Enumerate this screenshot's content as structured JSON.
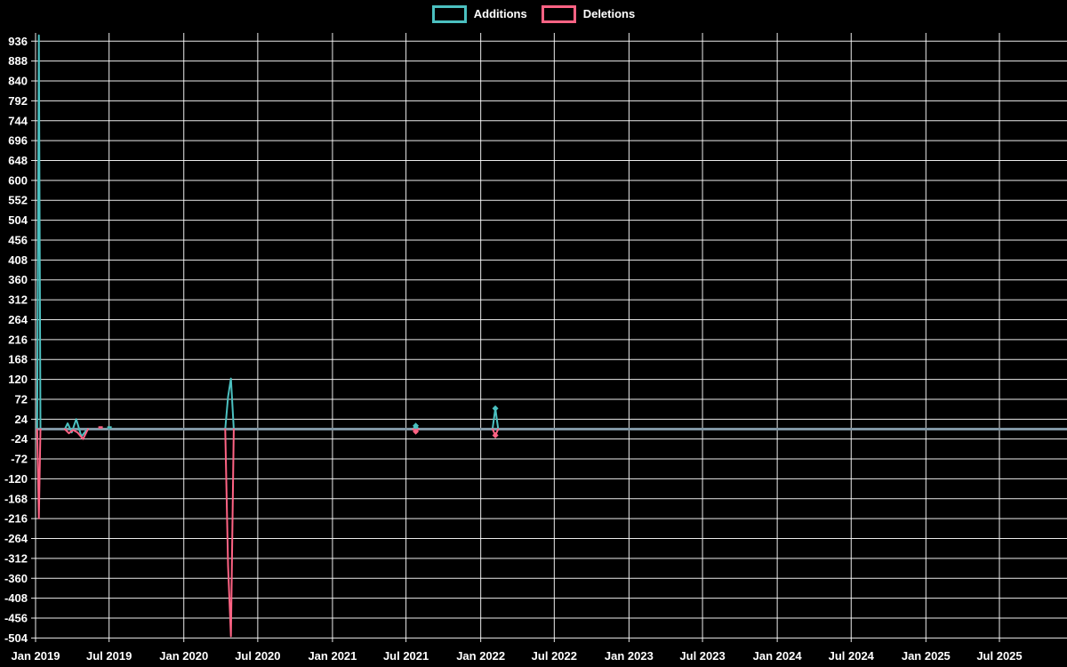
{
  "chart_data": {
    "type": "line",
    "title": "",
    "description": "Weekly code additions and deletions over time (code-frequency style chart)",
    "colors": {
      "background": "#000000",
      "grid": "#ffffff",
      "text": "#ffffff",
      "baseline": "#8096a4"
    },
    "legend": [
      {
        "label": "Additions",
        "color": "#4bc0c0"
      },
      {
        "label": "Deletions",
        "color": "#ff6384"
      }
    ],
    "y_axis": {
      "min": -504,
      "max": 936,
      "step": 48,
      "ticks": [
        936,
        888,
        840,
        792,
        744,
        696,
        648,
        600,
        552,
        504,
        456,
        408,
        360,
        312,
        264,
        216,
        168,
        120,
        72,
        24,
        -24,
        -72,
        -120,
        -168,
        -216,
        -264,
        -312,
        -360,
        -408,
        -456,
        -504
      ]
    },
    "x_axis": {
      "ticks": [
        {
          "label": "Jan 2019",
          "date": "2019-01-01"
        },
        {
          "label": "Jul 2019",
          "date": "2019-07-01"
        },
        {
          "label": "Jan 2020",
          "date": "2020-01-01"
        },
        {
          "label": "Jul 2020",
          "date": "2020-07-01"
        },
        {
          "label": "Jan 2021",
          "date": "2021-01-01"
        },
        {
          "label": "Jul 2021",
          "date": "2021-07-01"
        },
        {
          "label": "Jan 2022",
          "date": "2022-01-01"
        },
        {
          "label": "Jul 2022",
          "date": "2022-07-01"
        },
        {
          "label": "Jan 2023",
          "date": "2023-01-01"
        },
        {
          "label": "Jul 2023",
          "date": "2023-07-01"
        },
        {
          "label": "Jan 2024",
          "date": "2024-01-01"
        },
        {
          "label": "Jul 2024",
          "date": "2024-07-01"
        },
        {
          "label": "Jan 2025",
          "date": "2025-01-01"
        },
        {
          "label": "Jul 2025",
          "date": "2025-07-01"
        }
      ]
    },
    "baseline": {
      "value": 0,
      "color": "#8096a4"
    },
    "series": [
      {
        "name": "Additions",
        "color": "#4bc0c0",
        "baseline_value": 0,
        "segments": [
          [
            [
              "2019-01-05",
              0
            ],
            [
              "2019-01-09",
              950
            ],
            [
              "2019-01-13",
              0
            ]
          ],
          [
            [
              "2019-03-14",
              0
            ],
            [
              "2019-03-21",
              14
            ],
            [
              "2019-03-31",
              -8
            ],
            [
              "2019-04-11",
              24
            ],
            [
              "2019-04-24",
              -18
            ],
            [
              "2019-05-08",
              0
            ]
          ],
          [
            [
              "2020-04-12",
              0
            ],
            [
              "2020-04-19",
              78
            ],
            [
              "2020-04-26",
              122
            ],
            [
              "2020-05-03",
              0
            ]
          ],
          [
            [
              "2021-07-18",
              0
            ],
            [
              "2021-07-25",
              8,
              1
            ],
            [
              "2021-08-01",
              0
            ]
          ],
          [
            [
              "2022-01-30",
              0
            ],
            [
              "2022-02-06",
              50,
              1
            ],
            [
              "2022-02-13",
              0
            ]
          ]
        ],
        "zero_markers": [
          "2019-07-02"
        ]
      },
      {
        "name": "Deletions",
        "color": "#ff6384",
        "baseline_value": 0,
        "segments": [
          [
            [
              "2019-01-05",
              0
            ],
            [
              "2019-01-09",
              -215
            ],
            [
              "2019-01-13",
              0
            ]
          ],
          [
            [
              "2019-03-14",
              0
            ],
            [
              "2019-03-24",
              -10
            ],
            [
              "2019-04-03",
              -2
            ],
            [
              "2019-04-14",
              -8
            ],
            [
              "2019-04-28",
              -24
            ],
            [
              "2019-05-10",
              0
            ]
          ],
          [
            [
              "2020-04-12",
              0
            ],
            [
              "2020-04-19",
              -330
            ],
            [
              "2020-04-26",
              -500
            ],
            [
              "2020-05-03",
              0
            ]
          ],
          [
            [
              "2021-07-18",
              0
            ],
            [
              "2021-07-25",
              -6,
              1
            ],
            [
              "2021-08-01",
              0
            ]
          ],
          [
            [
              "2022-01-30",
              0
            ],
            [
              "2022-02-06",
              -15,
              1
            ],
            [
              "2022-02-13",
              0
            ]
          ]
        ],
        "zero_markers": [
          "2019-06-10"
        ]
      }
    ]
  }
}
